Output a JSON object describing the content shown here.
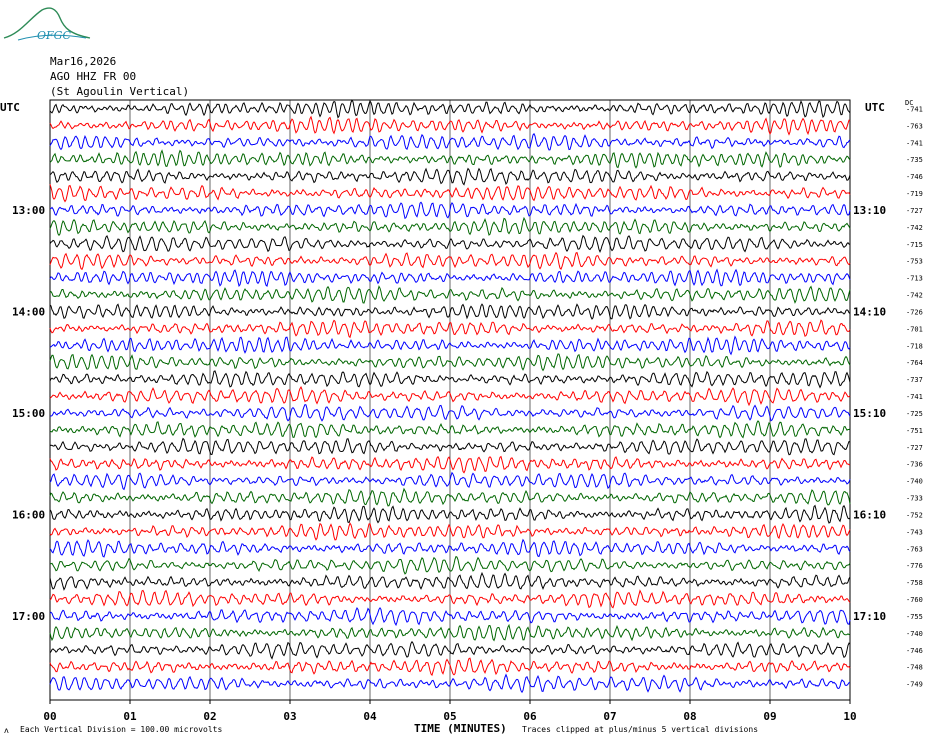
{
  "logo": {
    "text": "OFGC"
  },
  "header": {
    "date": "Mar16,2026",
    "channel": "AGO HHZ FR 00",
    "station": "(St Agoulin Vertical)"
  },
  "axis": {
    "left_unit": "UTC",
    "right_unit": "UTC",
    "dc_header": "DC",
    "x_title": "TIME (MINUTES)",
    "x_ticks": [
      "00",
      "01",
      "02",
      "03",
      "04",
      "05",
      "06",
      "07",
      "08",
      "09",
      "10"
    ]
  },
  "footer": {
    "scale_note": "Each Vertical Division =  100.00 microvolts",
    "clip_note": "Traces clipped at plus/minus 5 vertical divisions"
  },
  "colors": {
    "trace_cycle": [
      "#000000",
      "#ff0000",
      "#0000ff",
      "#006600"
    ],
    "grid": "#000000",
    "logo": "#1f8fb0",
    "logo_hill": "#2e8b57"
  },
  "chart_data": {
    "type": "line",
    "title": "AGO HHZ FR 00",
    "xlabel": "TIME (MINUTES)",
    "xlim": [
      0,
      10
    ],
    "grid": true,
    "minutes_per_line": 10,
    "left_time_labels": [
      "13:00",
      "14:00",
      "15:00",
      "16:00",
      "17:00"
    ],
    "right_time_labels": [
      "13:10",
      "14:10",
      "15:10",
      "16:10",
      "17:10"
    ],
    "dc_offsets": [
      -741,
      -763,
      -741,
      -735,
      -746,
      -719,
      -727,
      -742,
      -715,
      -753,
      -713,
      -742,
      -726,
      -701,
      -718,
      -764,
      -737,
      -741,
      -725,
      -751,
      -727,
      -736,
      -740,
      -733,
      -752,
      -743,
      -763,
      -776,
      -758,
      -760,
      -755,
      -740,
      -746,
      -748,
      -749
    ],
    "scale_microvolts_per_division": 100.0,
    "clip_divisions": 5
  }
}
